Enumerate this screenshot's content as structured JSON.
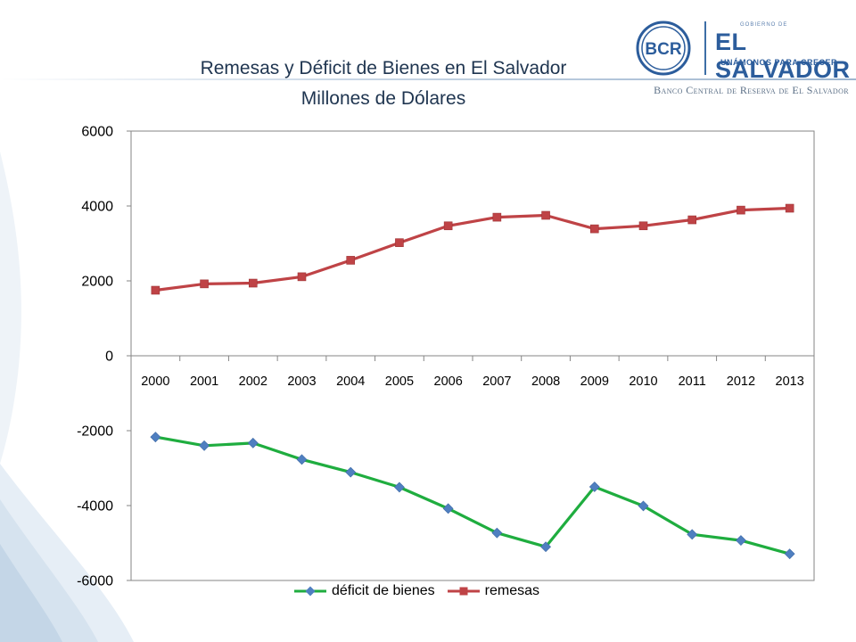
{
  "header": {
    "title_line1": "Remesas y Déficit de Bienes en El Salvador",
    "title_line2": "Millones de Dólares"
  },
  "logo": {
    "seal_text": "BCR",
    "small_text": "GOBIERNO DE",
    "name": "EL SALVADOR",
    "tagline": "UNÁMONOS PARA CRECER",
    "bank": "Banco Central de Reserva de El Salvador"
  },
  "colors": {
    "deficit": "#1fad3f",
    "deficit_marker": "#4f7fc0",
    "remesas": "#bf4346",
    "remesas_marker": "#bf4346",
    "axis": "#868686",
    "title": "#1f3550"
  },
  "chart_data": {
    "type": "line",
    "title": "Remesas y Déficit de Bienes en El Salvador",
    "subtitle": "Millones de Dólares",
    "categories": [
      "2000",
      "2001",
      "2002",
      "2003",
      "2004",
      "2005",
      "2006",
      "2007",
      "2008",
      "2009",
      "2010",
      "2011",
      "2012",
      "2013"
    ],
    "series": [
      {
        "name": "déficit de bienes",
        "marker": "diamond",
        "values": [
          -2170,
          -2400,
          -2330,
          -2770,
          -3110,
          -3510,
          -4080,
          -4730,
          -5100,
          -3500,
          -4010,
          -4770,
          -4930,
          -5290
        ]
      },
      {
        "name": "remesas",
        "marker": "square",
        "values": [
          1750,
          1920,
          1940,
          2110,
          2550,
          3020,
          3470,
          3700,
          3750,
          3390,
          3470,
          3630,
          3890,
          3940
        ]
      }
    ],
    "ylim": [
      -6000,
      6000
    ],
    "yticks": [
      -6000,
      -4000,
      -2000,
      0,
      2000,
      4000,
      6000
    ],
    "xlabel": "",
    "ylabel": "",
    "grid": false,
    "legend_position": "bottom"
  }
}
